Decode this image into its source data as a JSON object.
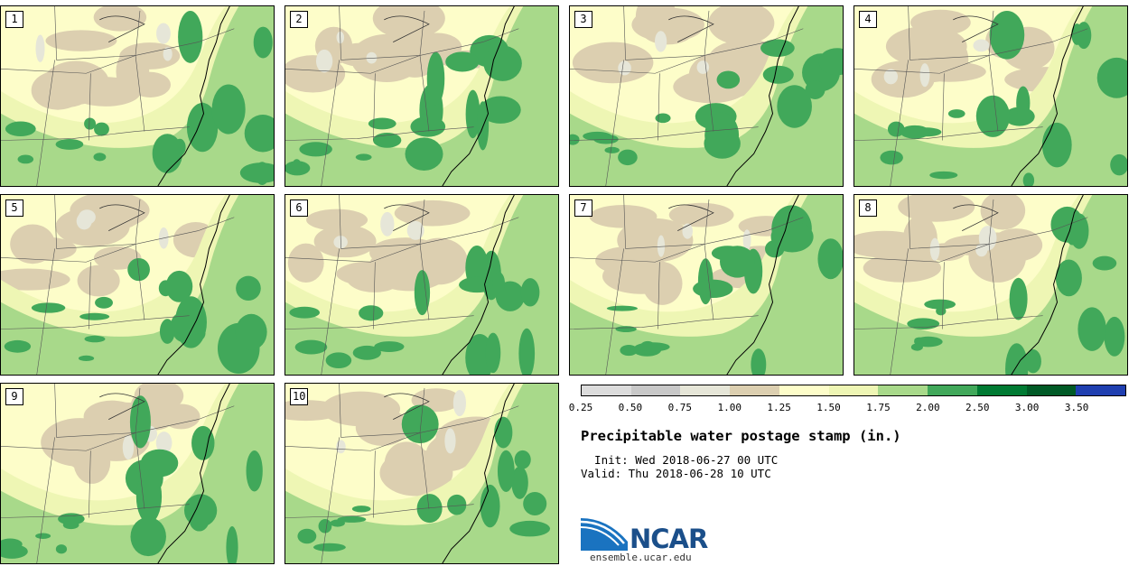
{
  "panels": [
    {
      "label": "1"
    },
    {
      "label": "2"
    },
    {
      "label": "3"
    },
    {
      "label": "4"
    },
    {
      "label": "5"
    },
    {
      "label": "6"
    },
    {
      "label": "7"
    },
    {
      "label": "8"
    },
    {
      "label": "9"
    },
    {
      "label": "10"
    }
  ],
  "colorbar": {
    "ticks": [
      "0.25",
      "0.50",
      "0.75",
      "1.00",
      "1.25",
      "1.50",
      "1.75",
      "2.00",
      "2.50",
      "3.00",
      "3.50"
    ],
    "colors": [
      "#dcdcdc",
      "#c8c8c8",
      "#e6e6d8",
      "#dccfb0",
      "#fdfdc9",
      "#eef6b4",
      "#a8d98a",
      "#41a85a",
      "#007a33",
      "#005a26",
      "#1f3fb0"
    ]
  },
  "title": "Precipitable water postage stamp (in.)",
  "init": "  Init: Wed 2018-06-27 00 UTC",
  "valid": "Valid: Thu 2018-06-28 10 UTC",
  "logo": {
    "text": "NCAR",
    "url": "ensemble.ucar.edu"
  }
}
